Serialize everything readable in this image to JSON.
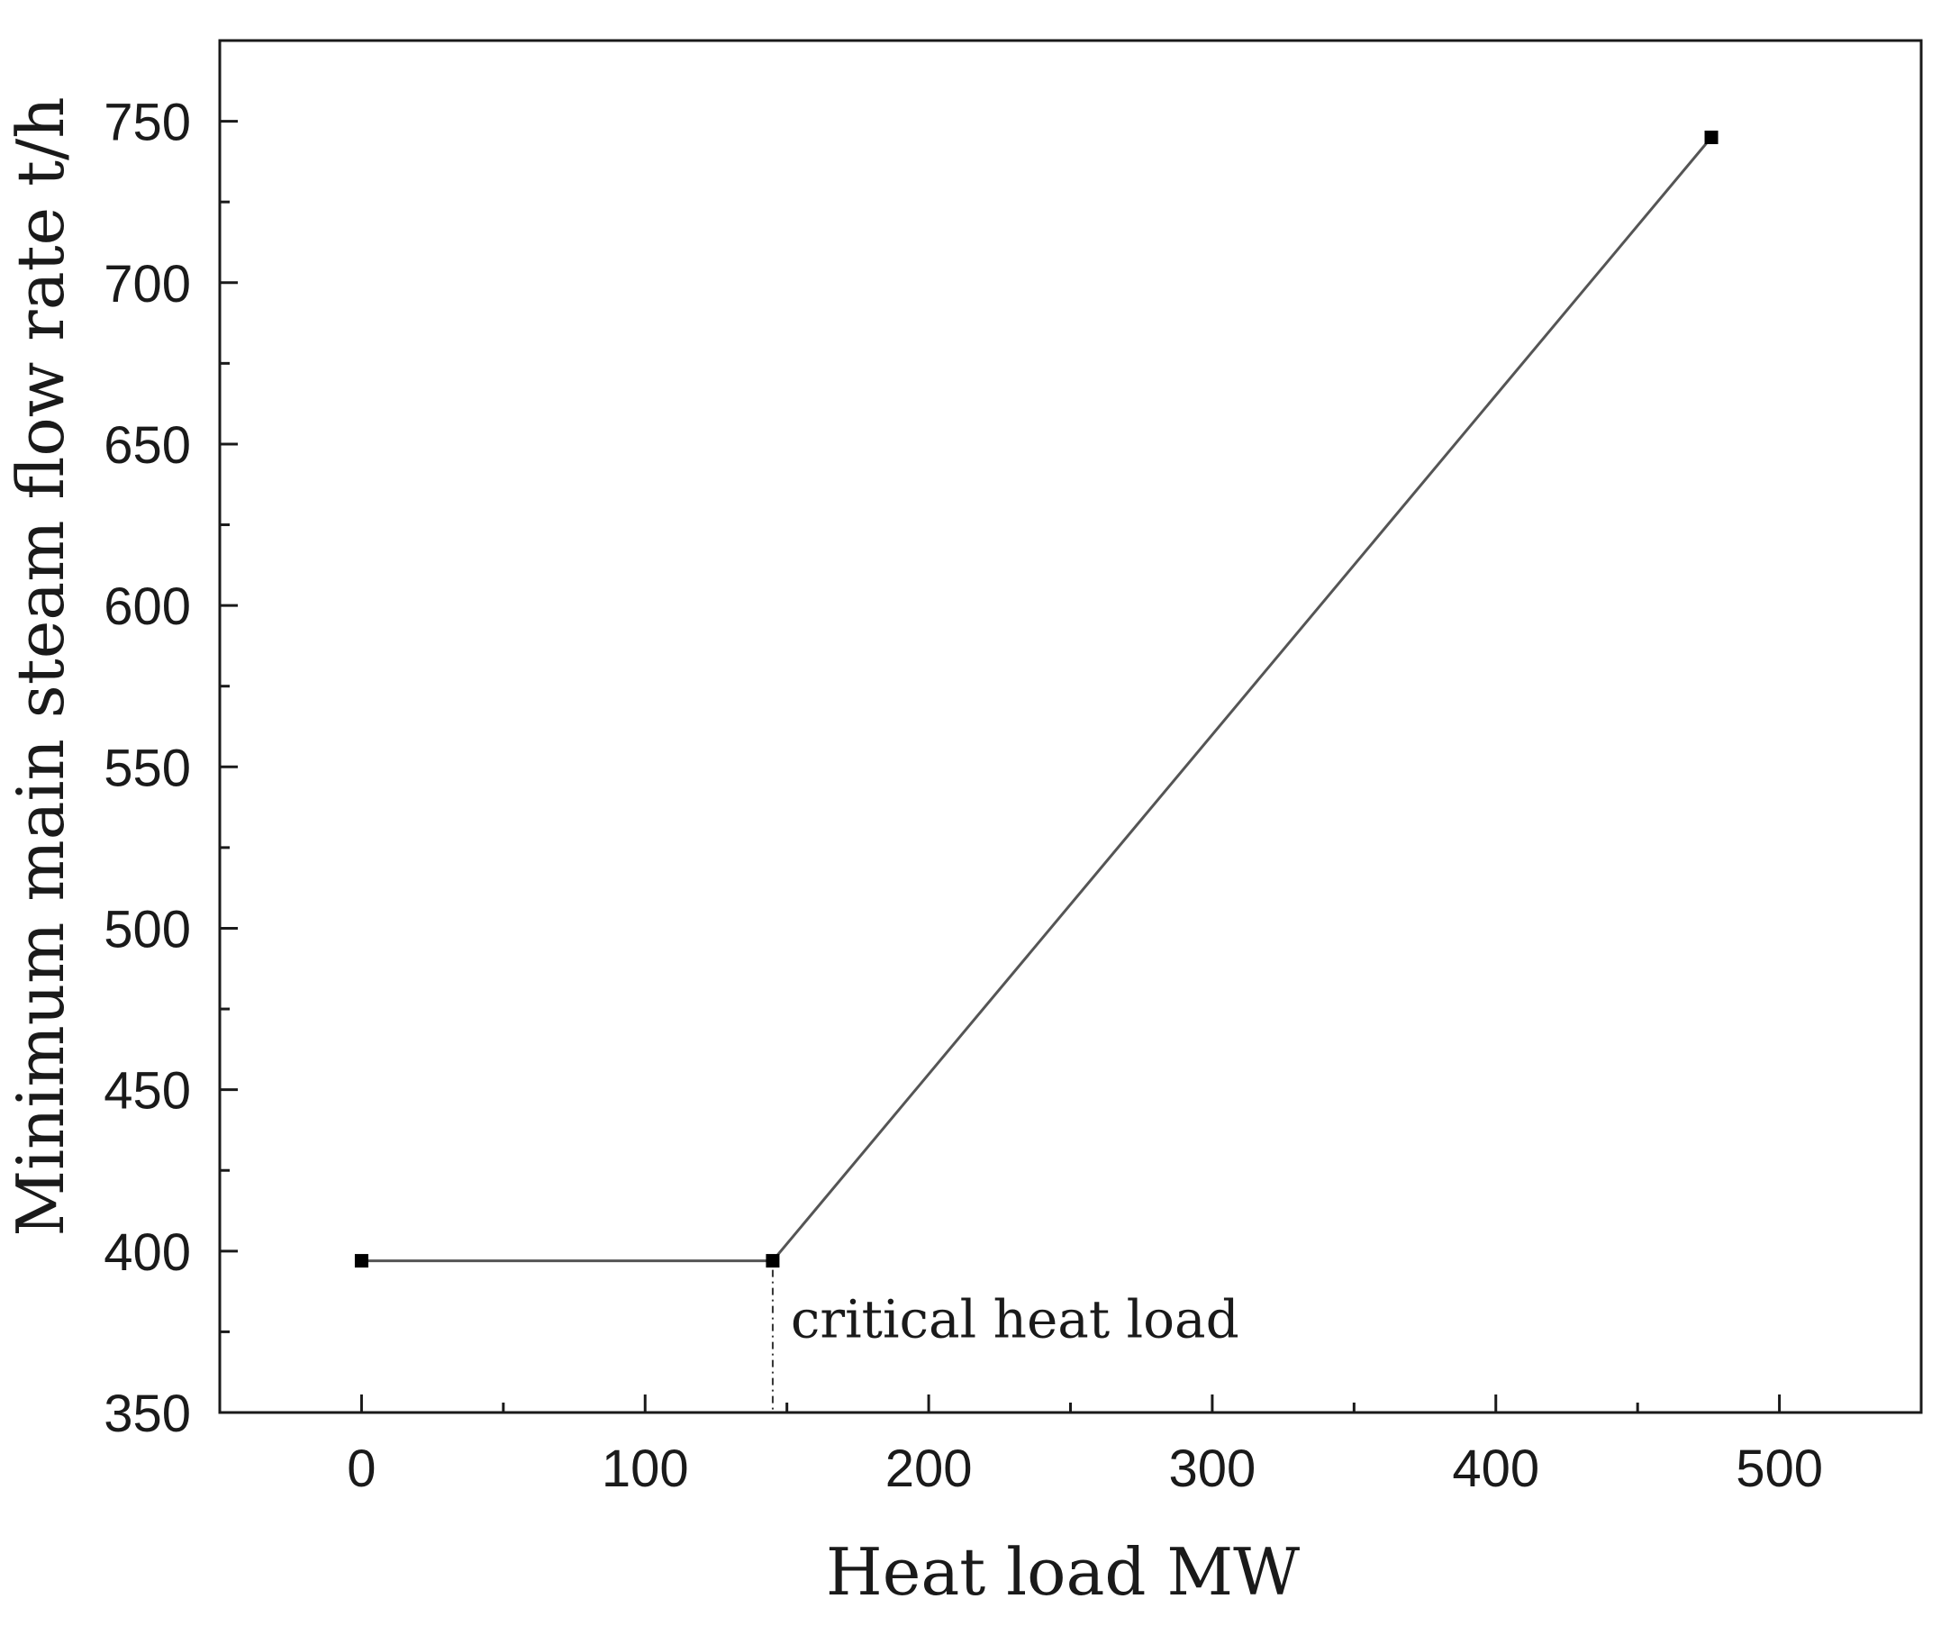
{
  "chart_data": {
    "type": "line",
    "title": "",
    "xlabel": "Heat load MW",
    "ylabel": "Minimum main steam flow rate t/h",
    "xlim": [
      -50,
      550
    ],
    "ylim": [
      350,
      775
    ],
    "x_ticks": [
      0,
      100,
      200,
      300,
      400,
      500
    ],
    "y_ticks": [
      350,
      400,
      450,
      500,
      550,
      600,
      650,
      700,
      750
    ],
    "x_minor_ticks": [
      50,
      150,
      250,
      350,
      450
    ],
    "y_minor_ticks": [
      375,
      425,
      475,
      525,
      575,
      625,
      675,
      725
    ],
    "grid": false,
    "legend": "none",
    "series": [
      {
        "x": [
          0,
          145,
          476
        ],
        "y": [
          397,
          397,
          745
        ],
        "marker": "square",
        "color": "#555555"
      }
    ],
    "annotations": [
      {
        "text": "critical heat load",
        "x": 145,
        "y_from": 350,
        "y_to": 397,
        "style": "dash-dot vertical line"
      }
    ]
  }
}
